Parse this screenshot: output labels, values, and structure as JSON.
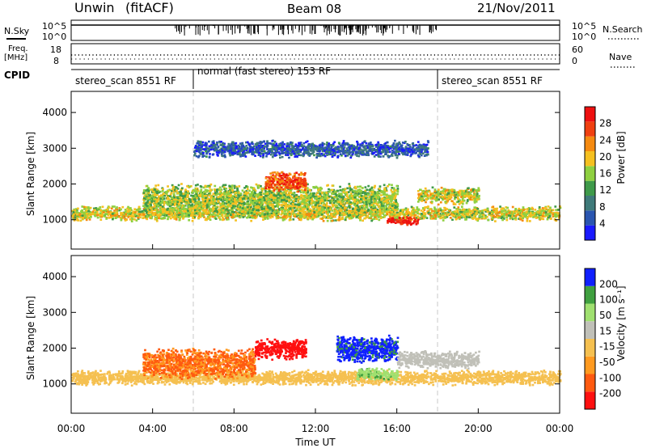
{
  "header": {
    "station": "Unwin",
    "method": "(fitACF)",
    "beam": "Beam 08",
    "date": "21/Nov/2011"
  },
  "top_panels": {
    "nsky_label": "N.Sky",
    "nsky_ticks_left": [
      "10^5",
      "10^0"
    ],
    "nsky_ticks_right": [
      "10^5",
      "10^0"
    ],
    "nsearch_label": "N.Search",
    "freq_label_line1": "Freq.",
    "freq_label_line2": "[MHz]",
    "freq_ticks": [
      "18",
      "8"
    ],
    "nave_ticks": [
      "60",
      "0"
    ],
    "nave_label": "Nave",
    "cpid_label": "CPID",
    "cpid_segments": [
      {
        "label": "stereo_scan 8551 RF",
        "start_h": 0,
        "end_h": 6
      },
      {
        "label": "normal (fast stereo) 153 RF",
        "start_h": 6,
        "end_h": 18
      },
      {
        "label": "stereo_scan 8551 RF",
        "start_h": 18,
        "end_h": 24
      }
    ]
  },
  "chart_data": [
    {
      "type": "heatmap",
      "ylabel": "Slant Range [km]",
      "yticks": [
        "1000",
        "2000",
        "3000",
        "4000"
      ],
      "ylim": [
        180,
        4590
      ],
      "xlim": [
        0,
        24
      ],
      "colorbar_label": "Power [dB]",
      "colorbar_ticks": [
        "4",
        "8",
        "12",
        "16",
        "20",
        "24",
        "28"
      ],
      "colorbar_range": [
        0,
        32
      ],
      "colors": [
        "#1a1aff",
        "#2a55b0",
        "#3f7a7a",
        "#3f9a4a",
        "#8fd040",
        "#f5c020",
        "#f58a10",
        "#f04010",
        "#ee1010"
      ],
      "scatter_bands": [
        {
          "x0": 0,
          "x1": 24,
          "center": 1200,
          "width": 220,
          "value": 18
        },
        {
          "x0": 3.5,
          "x1": 16,
          "center": 1600,
          "width": 450,
          "value": 16
        },
        {
          "x0": 9.5,
          "x1": 11.5,
          "center": 2100,
          "width": 300,
          "value": 26
        },
        {
          "x0": 15.5,
          "x1": 17,
          "center": 1000,
          "width": 120,
          "value": 30
        },
        {
          "x0": 17,
          "x1": 20,
          "center": 1700,
          "width": 250,
          "value": 18
        },
        {
          "x0": 6,
          "x1": 17.5,
          "center": 3000,
          "width": 250,
          "value": 6
        }
      ]
    },
    {
      "type": "heatmap",
      "ylabel": "Slant Range [km]",
      "yticks": [
        "1000",
        "2000",
        "3000",
        "4000"
      ],
      "ylim": [
        180,
        4590
      ],
      "xlim": [
        0,
        24
      ],
      "xlabel": "Time UT",
      "xticks": [
        "00:00",
        "04:00",
        "08:00",
        "12:00",
        "16:00",
        "20:00",
        "00:00"
      ],
      "colorbar_label": "Velocity [m s⁻¹]",
      "colorbar_ticks": [
        "-200",
        "-100",
        "-50",
        "-15",
        "15",
        "50",
        "100",
        "200"
      ],
      "colors": [
        "#ff1010",
        "#ff5a10",
        "#ff9a20",
        "#f5c050",
        "#c0c0b8",
        "#a0e070",
        "#40a040",
        "#1020ff"
      ],
      "scatter_bands": [
        {
          "x0": 0,
          "x1": 24,
          "center": 1200,
          "width": 220,
          "value": -0.2
        },
        {
          "x0": 3.5,
          "x1": 9,
          "center": 1600,
          "width": 450,
          "value": -60
        },
        {
          "x0": 9,
          "x1": 11.5,
          "center": 2000,
          "width": 300,
          "value": -220
        },
        {
          "x0": 13,
          "x1": 16,
          "center": 2000,
          "width": 400,
          "value": 220
        },
        {
          "x0": 14,
          "x1": 16,
          "center": 1300,
          "width": 180,
          "value": 80
        },
        {
          "x0": 16,
          "x1": 20,
          "center": 1700,
          "width": 250,
          "value": 30
        }
      ]
    }
  ]
}
